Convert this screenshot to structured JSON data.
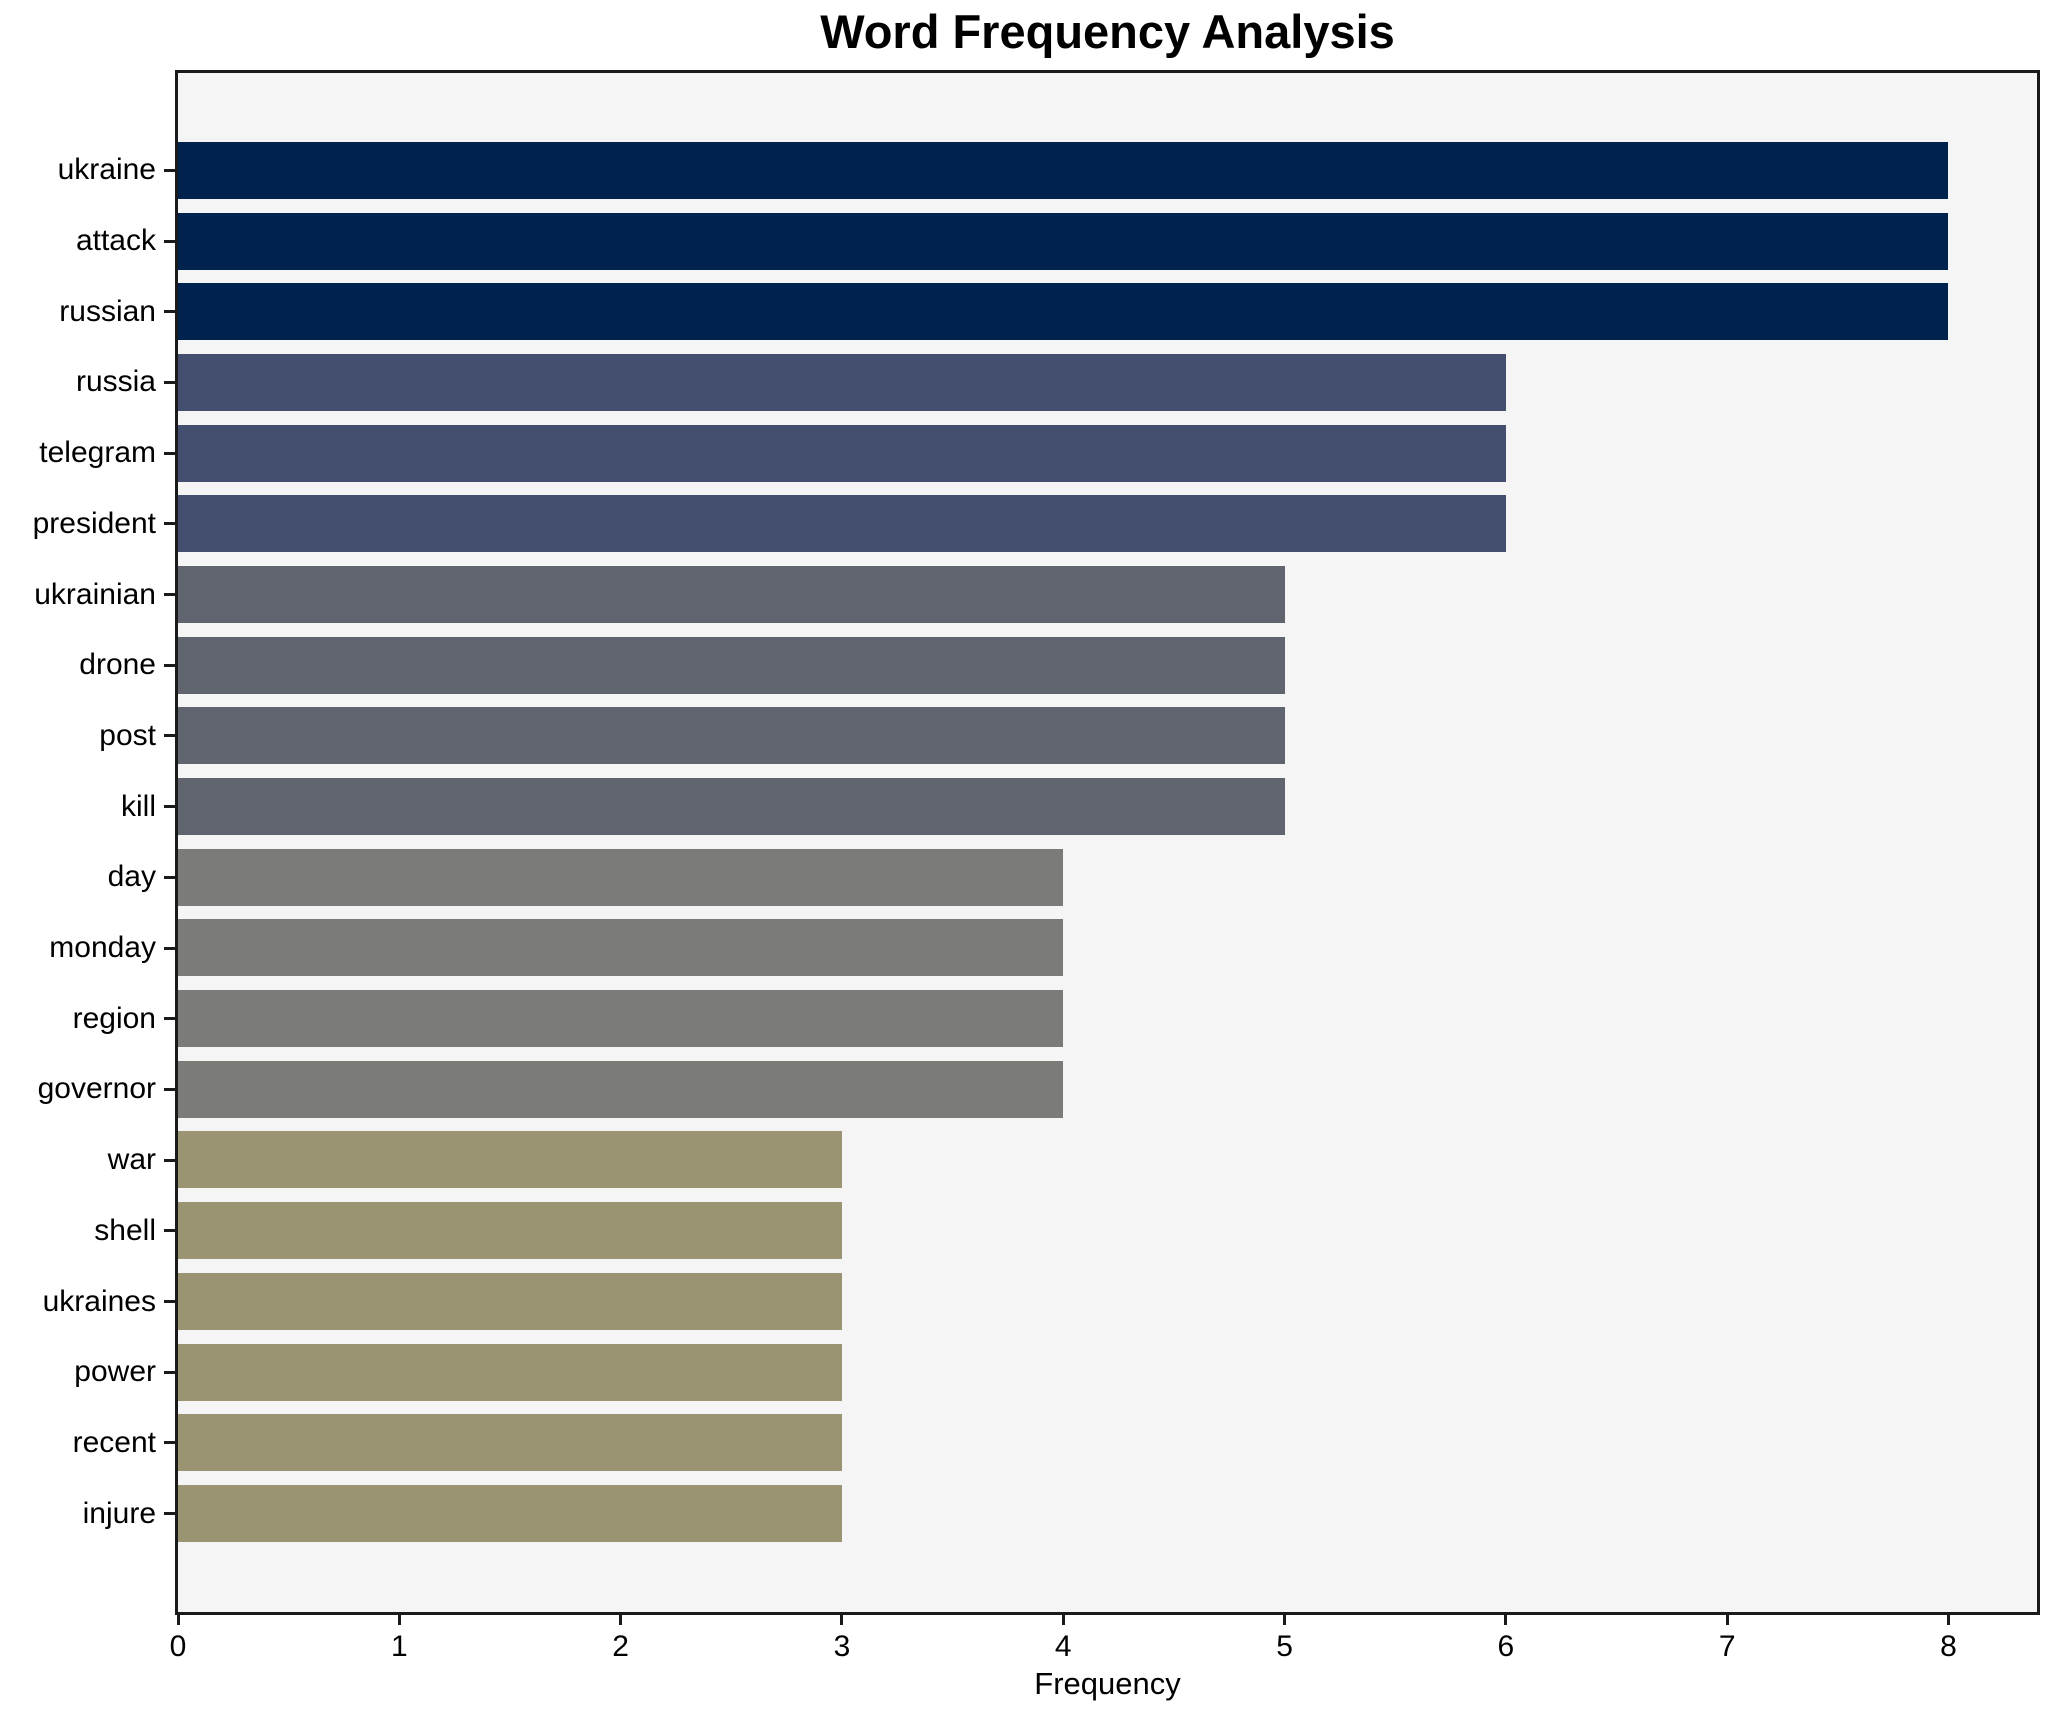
{
  "chart_data": {
    "type": "bar",
    "orientation": "horizontal",
    "title": "Word Frequency Analysis",
    "xlabel": "Frequency",
    "ylabel": "",
    "xlim": [
      0,
      8.4
    ],
    "xticks": [
      0,
      1,
      2,
      3,
      4,
      5,
      6,
      7,
      8
    ],
    "grid": false,
    "legend": "none",
    "categories": [
      "ukraine",
      "attack",
      "russian",
      "russia",
      "telegram",
      "president",
      "ukrainian",
      "drone",
      "post",
      "kill",
      "day",
      "monday",
      "region",
      "governor",
      "war",
      "shell",
      "ukraines",
      "power",
      "recent",
      "injure"
    ],
    "values": [
      8,
      8,
      8,
      6,
      6,
      6,
      5,
      5,
      5,
      5,
      4,
      4,
      4,
      4,
      3,
      3,
      3,
      3,
      3,
      3
    ],
    "color_by_value": {
      "8": "#00224e",
      "6": "#444e6e",
      "5": "#5f646f",
      "4": "#7b7b78",
      "3": "#9a9472"
    }
  },
  "style": {
    "figure_bg": "#ffffff",
    "plot_bg": "#f5f5f6",
    "spine_color": "#1a1a1a",
    "text_color": "#000000"
  }
}
